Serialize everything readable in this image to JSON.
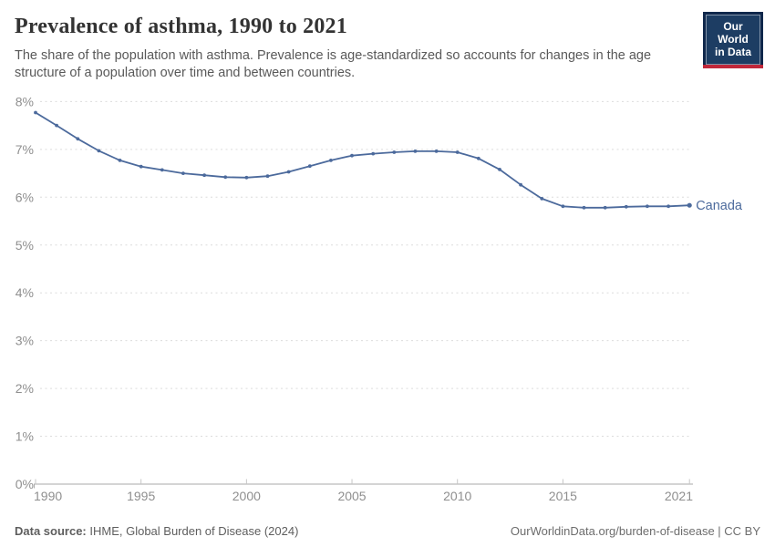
{
  "header": {
    "title": "Prevalence of asthma, 1990 to 2021",
    "subtitle": "The share of the population with asthma. Prevalence is age-standardized so accounts for changes in the age structure of a population over time and between countries.",
    "logo": {
      "line1": "Our World",
      "line2": "in Data",
      "bg_outer": "#10284c",
      "bg_inner": "#1d3d63",
      "accent": "#c0273a"
    }
  },
  "chart_data": {
    "type": "line",
    "title": "Prevalence of asthma, 1990 to 2021",
    "x": [
      1990,
      1991,
      1992,
      1993,
      1994,
      1995,
      1996,
      1997,
      1998,
      1999,
      2000,
      2001,
      2002,
      2003,
      2004,
      2005,
      2006,
      2007,
      2008,
      2009,
      2010,
      2011,
      2012,
      2013,
      2014,
      2015,
      2016,
      2017,
      2018,
      2019,
      2020,
      2021
    ],
    "series": [
      {
        "name": "Canada",
        "color": "#4C6A9C",
        "values": [
          7.77,
          7.5,
          7.22,
          6.97,
          6.77,
          6.64,
          6.57,
          6.5,
          6.46,
          6.42,
          6.41,
          6.44,
          6.53,
          6.65,
          6.77,
          6.87,
          6.91,
          6.94,
          6.96,
          6.96,
          6.94,
          6.81,
          6.58,
          6.26,
          5.97,
          5.81,
          5.78,
          5.78,
          5.8,
          5.81,
          5.81,
          5.83
        ]
      }
    ],
    "xlabel": "",
    "ylabel": "",
    "ylim": [
      0,
      8
    ],
    "yticks": [
      0,
      1,
      2,
      3,
      4,
      5,
      6,
      7,
      8
    ],
    "ytick_suffix": "%",
    "xticks": [
      1990,
      1995,
      2000,
      2005,
      2010,
      2015,
      2021
    ],
    "grid": "horizontal-dashed",
    "legend_position": "end-of-line-label"
  },
  "footer": {
    "source_label": "Data source:",
    "source_text": " IHME, Global Burden of Disease (2024)",
    "credit": "OurWorldinData.org/burden-of-disease | CC BY"
  }
}
